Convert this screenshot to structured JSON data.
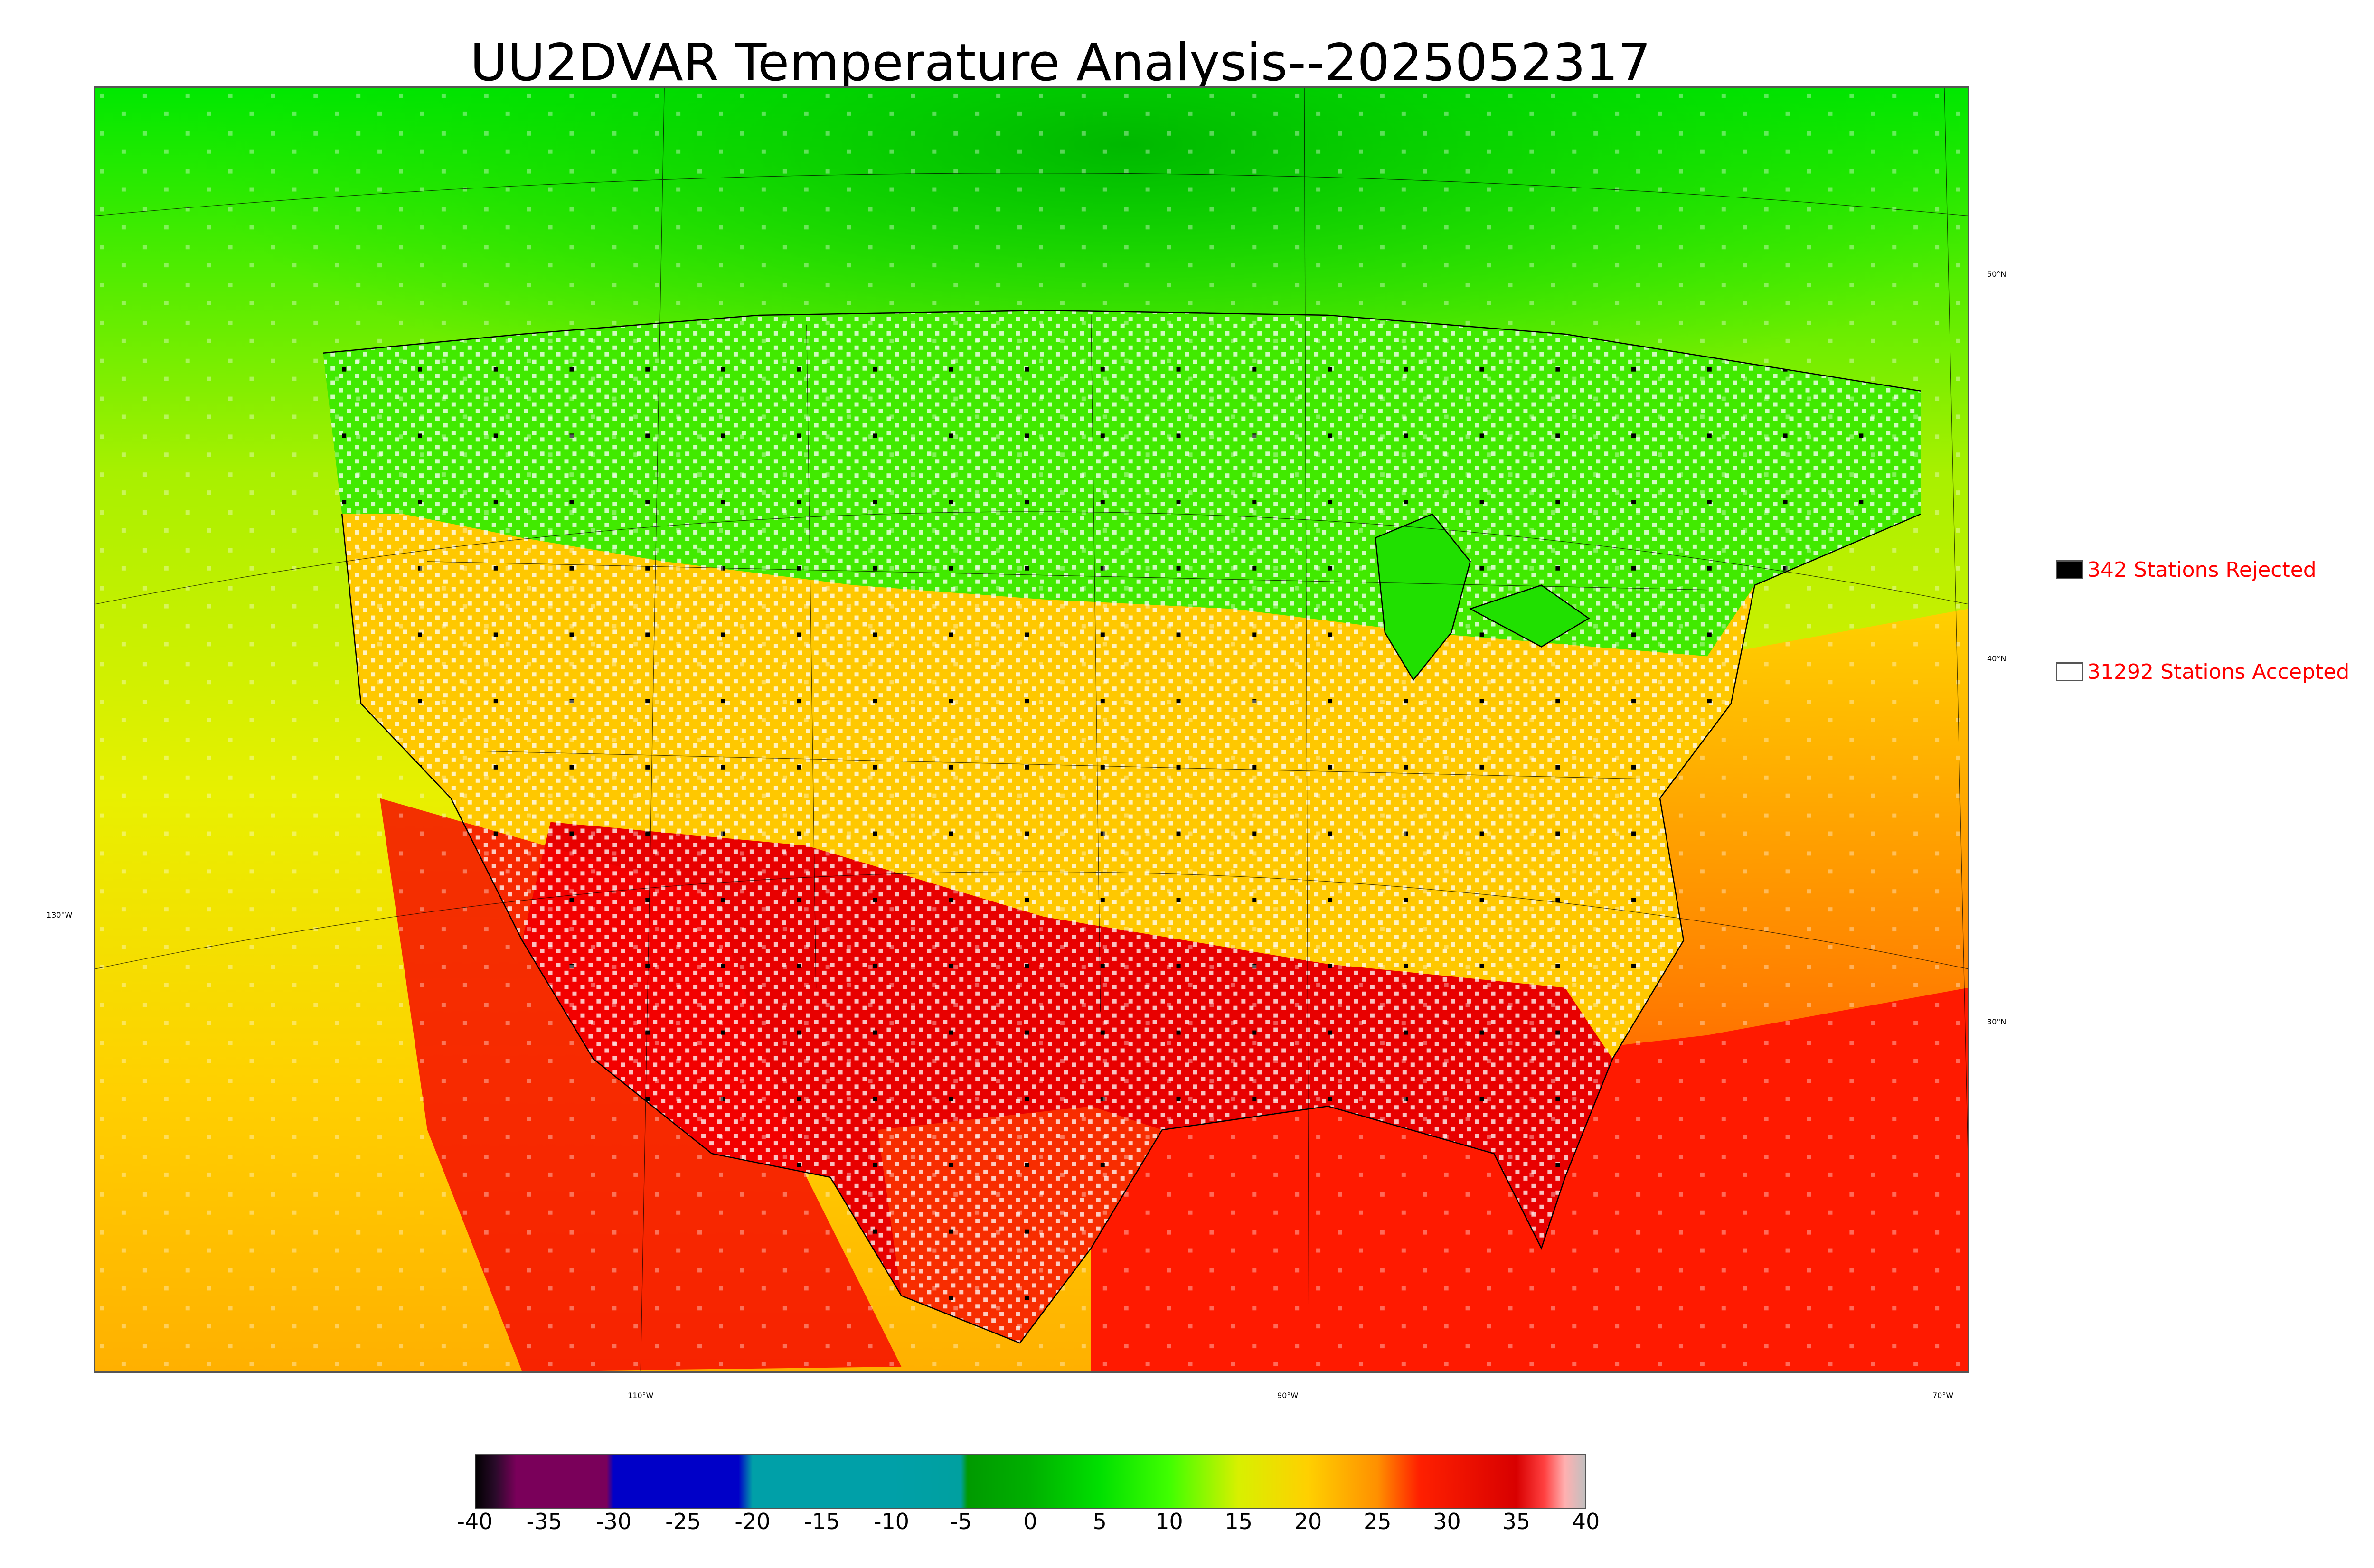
{
  "title": "UU2DVAR Temperature Analysis--2025052317",
  "legend": {
    "rejected": {
      "label": "342 Stations Rejected",
      "swatch_color": "#000000"
    },
    "accepted": {
      "label": "31292 Stations Accepted",
      "swatch_color": "#ffffff"
    },
    "text_color": "#ff0000"
  },
  "map": {
    "lon_labels": [
      "110°W",
      "90°W",
      "70°W"
    ],
    "lat_labels": [
      "50°N",
      "40°N",
      "30°N"
    ],
    "west_label": "130°W",
    "palette": {
      "cold": "#00cc00",
      "cool": "#00ff00",
      "mild": "#d8f000",
      "warm": "#ffd000",
      "hot": "#ff2000",
      "very_hot": "#e00000"
    }
  },
  "colorbar": {
    "min": -40,
    "max": 40,
    "tick_labels": [
      "-40",
      "-35",
      "-30",
      "-25",
      "-20",
      "-15",
      "-10",
      "-5",
      "0",
      "5",
      "10",
      "15",
      "20",
      "25",
      "30",
      "35",
      "40"
    ],
    "stops": [
      {
        "value": -40,
        "color": "#000000"
      },
      {
        "value": -38.5,
        "color": "#2a0a2a"
      },
      {
        "value": -37,
        "color": "#7a005a"
      },
      {
        "value": -30.5,
        "color": "#7a005a"
      },
      {
        "value": -30,
        "color": "#0000c8"
      },
      {
        "value": -21,
        "color": "#0000c8"
      },
      {
        "value": -20,
        "color": "#00a0a8"
      },
      {
        "value": -10,
        "color": "#00a0a8"
      },
      {
        "value": -5,
        "color": "#00a0a0"
      },
      {
        "value": -4.5,
        "color": "#009a00"
      },
      {
        "value": 0,
        "color": "#00b000"
      },
      {
        "value": 5,
        "color": "#00e000"
      },
      {
        "value": 10,
        "color": "#40ff00"
      },
      {
        "value": 15,
        "color": "#d8f000"
      },
      {
        "value": 20,
        "color": "#ffd000"
      },
      {
        "value": 25,
        "color": "#ff9000"
      },
      {
        "value": 28,
        "color": "#ff2000"
      },
      {
        "value": 35,
        "color": "#d80000"
      },
      {
        "value": 37,
        "color": "#ff4040"
      },
      {
        "value": 38.5,
        "color": "#ffb0b0"
      },
      {
        "value": 40,
        "color": "#c0c0c0"
      }
    ]
  }
}
